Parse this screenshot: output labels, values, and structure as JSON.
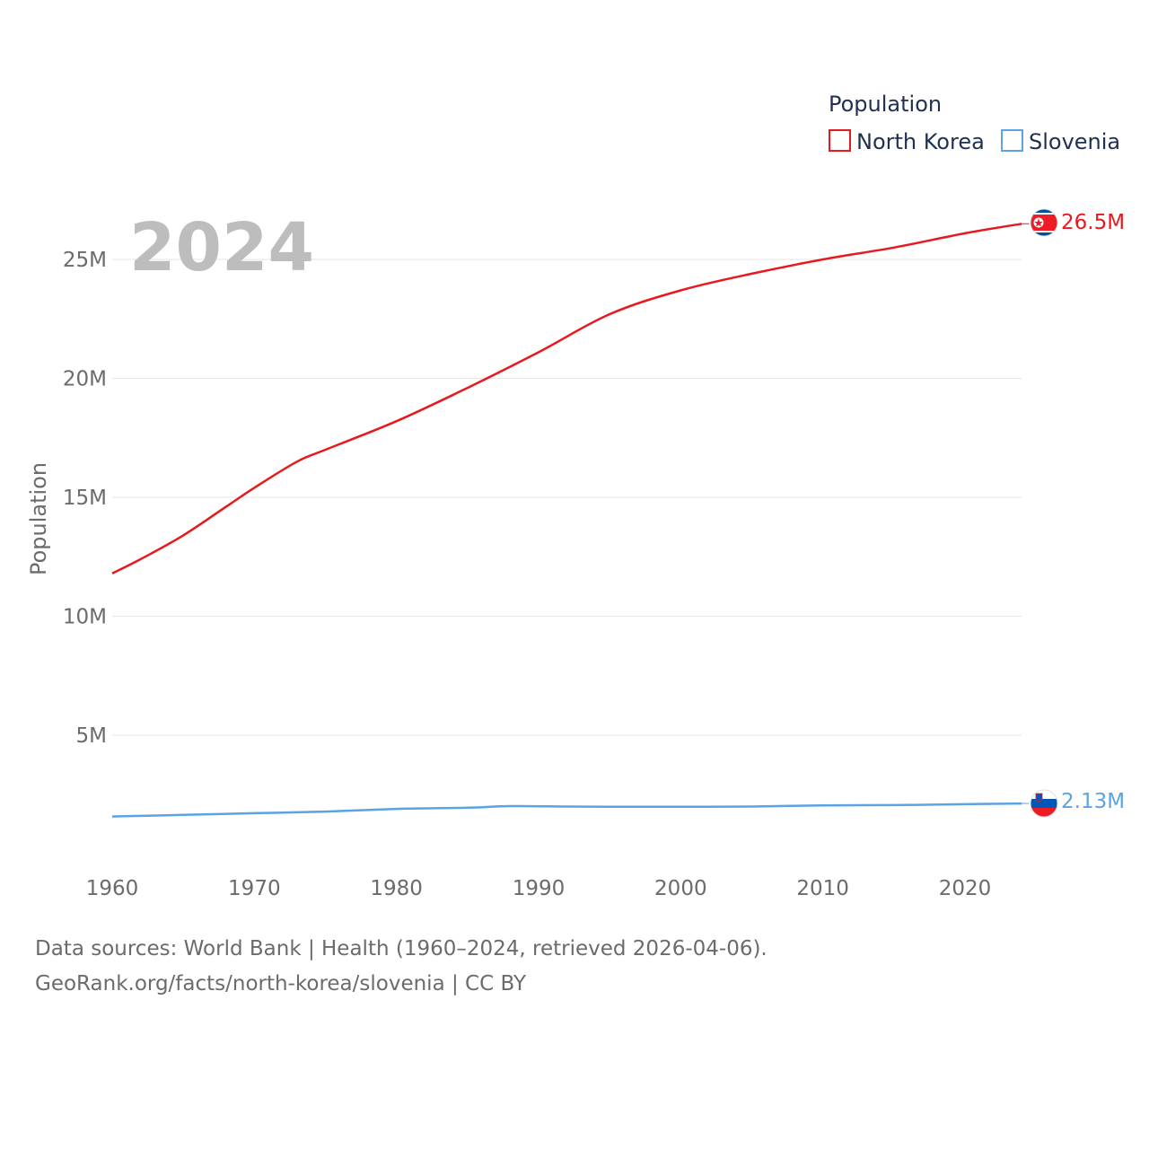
{
  "chart_data": {
    "type": "line",
    "title": "Population",
    "current_year": "2024",
    "ylabel": "Population",
    "xlim": [
      1960,
      2024
    ],
    "ylim": [
      0,
      27000000
    ],
    "x_ticks": [
      1960,
      1970,
      1980,
      1990,
      2000,
      2010,
      2020
    ],
    "y_ticks": [
      5000000,
      10000000,
      15000000,
      20000000,
      25000000
    ],
    "y_tick_labels": [
      "5M",
      "10M",
      "15M",
      "20M",
      "25M"
    ],
    "grid": true,
    "legend_placement": "top-right",
    "series": [
      {
        "name": "North Korea",
        "color": "#e8191e",
        "end_label": "26.5M",
        "flag": "north-korea-flag-icon",
        "x": [
          1960,
          1962,
          1965,
          1968,
          1970,
          1973,
          1975,
          1980,
          1985,
          1990,
          1995,
          2000,
          2005,
          2010,
          2015,
          2020,
          2024
        ],
        "values": [
          11800000,
          12400000,
          13400000,
          14600000,
          15400000,
          16500000,
          17000000,
          18200000,
          19600000,
          21100000,
          22700000,
          23700000,
          24400000,
          25000000,
          25500000,
          26100000,
          26500000
        ]
      },
      {
        "name": "Slovenia",
        "color": "#5ba3e2",
        "end_label": "2.13M",
        "flag": "slovenia-flag-icon",
        "x": [
          1960,
          1965,
          1970,
          1975,
          1980,
          1985,
          1988,
          1992,
          1995,
          2000,
          2005,
          2010,
          2015,
          2020,
          2024
        ],
        "values": [
          1580000,
          1650000,
          1720000,
          1790000,
          1900000,
          1950000,
          2020000,
          2000000,
          1990000,
          1990000,
          2000000,
          2050000,
          2060000,
          2100000,
          2130000
        ]
      }
    ]
  },
  "footer": {
    "sources": "Data sources: World Bank | Health (1960–2024, retrieved 2026-04-06).",
    "url": "GeoRank.org/facts/north-korea/slovenia | CC BY"
  }
}
